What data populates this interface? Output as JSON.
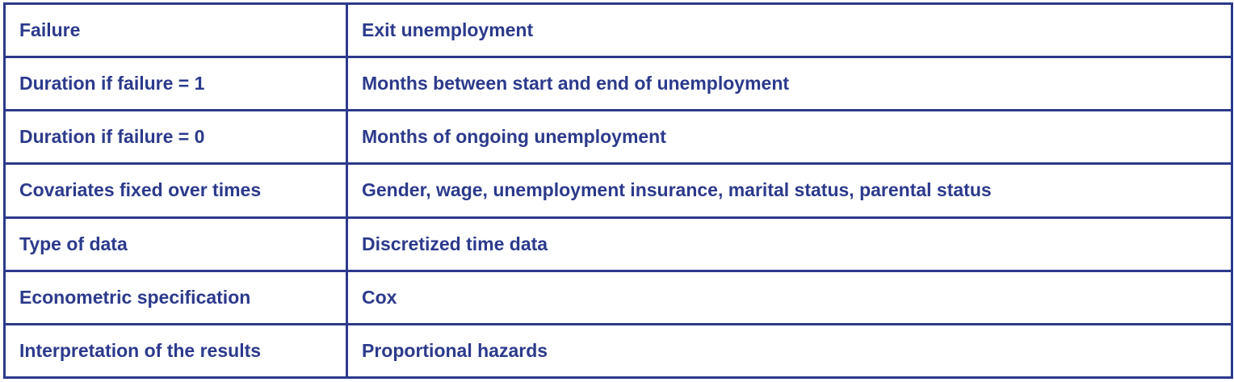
{
  "table": {
    "rows": [
      {
        "label": "Failure",
        "value": "Exit unemployment"
      },
      {
        "label": "Duration if failure = 1",
        "value": "Months between start and end of unemployment"
      },
      {
        "label": "Duration if failure = 0",
        "value": "Months of ongoing unemployment"
      },
      {
        "label": "Covariates fixed over times",
        "value": "Gender, wage, unemployment insurance, marital status, parental status"
      },
      {
        "label": "Type of data",
        "value": "Discretized time data"
      },
      {
        "label": "Econometric specification",
        "value": "Cox"
      },
      {
        "label": "Interpretation of the results",
        "value": "Proportional hazards"
      }
    ],
    "colors": {
      "text": "#2b3a8c",
      "border": "#2b3a8c",
      "background": "#ffffff"
    }
  }
}
